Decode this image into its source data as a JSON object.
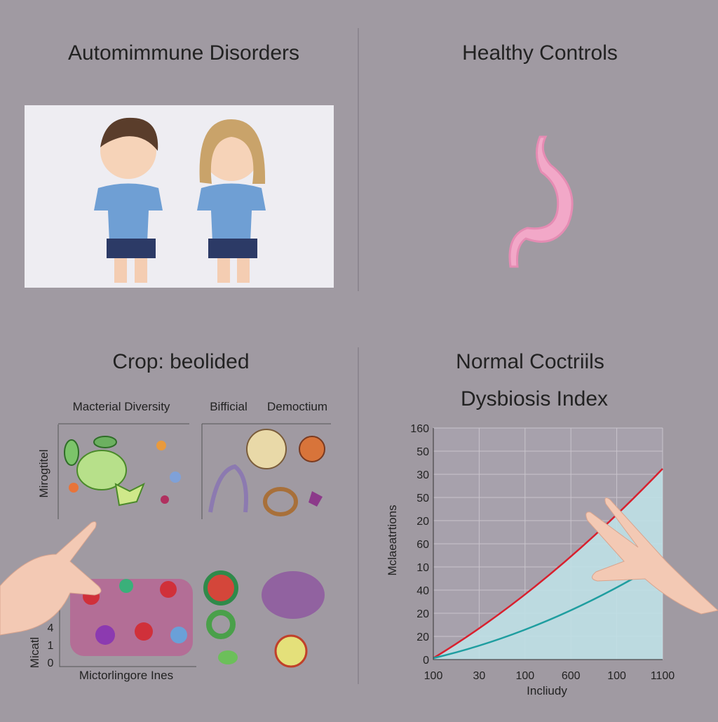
{
  "panels": {
    "top_left": {
      "title": "Automimmune Disorders"
    },
    "top_right": {
      "title": "Healthy Controls"
    },
    "bottom_left": {
      "title": "Crop: beolided",
      "labels": [
        "Macterial Diversity",
        "Bifficial",
        "Democtium"
      ],
      "y_label_upper": "Mirogtitel",
      "y_label_lower": "Micatl",
      "y_ticks_lower": [
        "4",
        "1",
        "0"
      ],
      "x_label": "Mictorlingore Ines"
    },
    "bottom_right": {
      "title": "Normal Coctriils",
      "subtitle": "Dysbiosis Index",
      "y_label": "Mclaeatrtions",
      "x_label": "Incliudy",
      "y_ticks": [
        "160",
        "50",
        "30",
        "50",
        "20",
        "60",
        "10",
        "40",
        "20",
        "20",
        "0"
      ],
      "x_ticks": [
        "100",
        "30",
        "100",
        "600",
        "100",
        "1100"
      ]
    }
  }
}
